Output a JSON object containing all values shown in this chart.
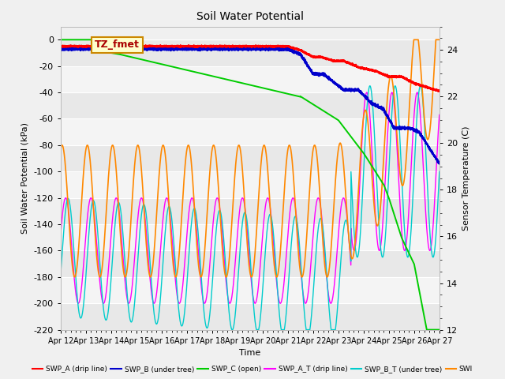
{
  "title": "Soil Water Potential",
  "xlabel": "Time",
  "ylabel_left": "Soil Water Potential (kPa)",
  "ylabel_right": "Sensor Temperature (C)",
  "annotation": "TZ_fmet",
  "annotation_color": "#aa0000",
  "annotation_bg": "#ffffcc",
  "annotation_border": "#cc8800",
  "xlim": [
    0,
    15
  ],
  "ylim_left": [
    -220,
    10
  ],
  "ylim_right": [
    12,
    25
  ],
  "yticks_left": [
    0,
    -20,
    -40,
    -60,
    -80,
    -100,
    -120,
    -140,
    -160,
    -180,
    -200,
    -220
  ],
  "yticks_right": [
    12,
    14,
    16,
    18,
    20,
    22,
    24
  ],
  "xtick_labels": [
    "Apr 12",
    "Apr 13",
    "Apr 14",
    "Apr 15",
    "Apr 16",
    "Apr 17",
    "Apr 18",
    "Apr 19",
    "Apr 20",
    "Apr 21",
    "Apr 22",
    "Apr 23",
    "Apr 24",
    "Apr 25",
    "Apr 26",
    "Apr 27"
  ],
  "bg_color": "#f0f0f0",
  "band_colors": [
    "#e8e8e8",
    "#f4f4f4"
  ],
  "grid_line_color": "#ffffff",
  "series_colors": {
    "swp_a": "#ff0000",
    "swp_b": "#0000cc",
    "swp_c": "#00cc00",
    "swp_at": "#ff00ff",
    "swp_bt": "#00cccc",
    "swi": "#ff8800"
  }
}
